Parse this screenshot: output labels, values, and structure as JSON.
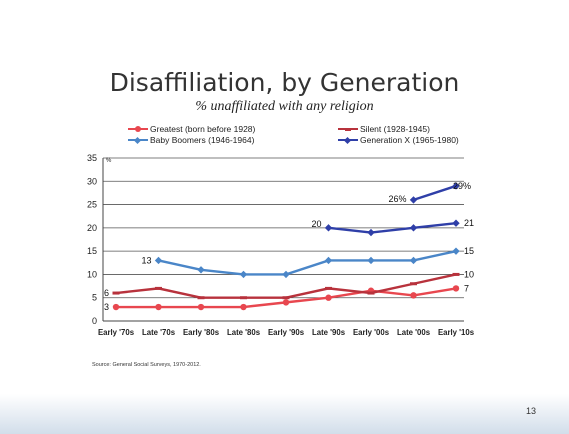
{
  "slide": {
    "source": "Source: General Social Surveys, 1970-2012.",
    "page_number": "13"
  },
  "chart_data": {
    "type": "line",
    "title": "Disaffiliation, by Generation",
    "subtitle": "% unaffiliated with any religion",
    "ylim": [
      0,
      35
    ],
    "yticks": [
      0,
      5,
      10,
      15,
      20,
      25,
      30,
      35
    ],
    "y_unit": "%",
    "grid": true,
    "legend_placement": "top",
    "categories": [
      "Early '70s",
      "Late '70s",
      "Early '80s",
      "Late '80s",
      "Early '90s",
      "Late '90s",
      "Early '00s",
      "Late '00s",
      "Early '10s"
    ],
    "series": [
      {
        "name": "Greatest (born before 1928)",
        "color": "#e8474f",
        "marker": "circle",
        "values": [
          3,
          3,
          3,
          3,
          4,
          5,
          6.5,
          5.5,
          7
        ],
        "labels": [
          {
            "i": 0,
            "text": "3"
          },
          {
            "i": 8,
            "text": "7"
          }
        ]
      },
      {
        "name": "Silent (1928-1945)",
        "color": "#b8323c",
        "marker": "dash",
        "values": [
          6,
          7,
          5,
          5,
          5,
          7,
          6,
          8,
          10
        ],
        "labels": [
          {
            "i": 0,
            "text": "6"
          },
          {
            "i": 8,
            "text": "10"
          }
        ]
      },
      {
        "name": "Baby Boomers (1946-1964)",
        "color": "#4a86c8",
        "marker": "diamond",
        "values": [
          null,
          13,
          11,
          10,
          10,
          13,
          13,
          13,
          15
        ],
        "labels": [
          {
            "i": 1,
            "text": "13"
          },
          {
            "i": 8,
            "text": "15"
          }
        ]
      },
      {
        "name": "Generation X (1965-1980)",
        "color": "#2f3fa8",
        "marker": "diamond",
        "values": [
          null,
          null,
          null,
          null,
          null,
          20,
          19,
          20,
          21
        ],
        "labels": [
          {
            "i": 5,
            "text": "20"
          },
          {
            "i": 8,
            "text": "21"
          }
        ]
      },
      {
        "name": "",
        "color": "#2f3fa8",
        "marker": "diamond",
        "values": [
          null,
          null,
          null,
          null,
          null,
          null,
          null,
          26,
          29
        ],
        "labels": [
          {
            "i": 7,
            "text": "26%"
          },
          {
            "i": 8,
            "text": "29%"
          }
        ]
      }
    ]
  }
}
